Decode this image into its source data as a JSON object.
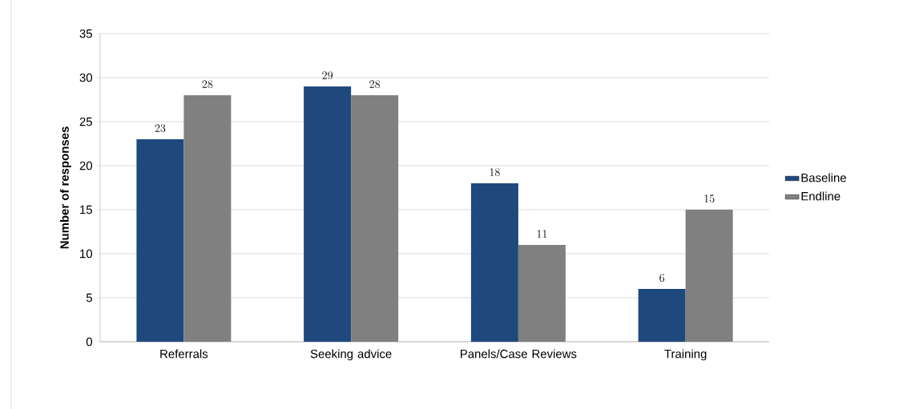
{
  "chart_data": {
    "type": "bar",
    "ylabel": "Number of responses",
    "categories": [
      "Referrals",
      "Seeking advice",
      "Panels/Case Reviews",
      "Training"
    ],
    "series": [
      {
        "name": "Baseline",
        "color": "#1f497d",
        "values": [
          23,
          29,
          18,
          6
        ]
      },
      {
        "name": "Endline",
        "color": "#808080",
        "values": [
          28,
          28,
          11,
          15
        ]
      }
    ],
    "ylim": [
      0,
      35
    ],
    "yticks": [
      0,
      5,
      10,
      15,
      20,
      25,
      30,
      35
    ],
    "grid": "y",
    "legend": "right",
    "data_labels": true
  }
}
